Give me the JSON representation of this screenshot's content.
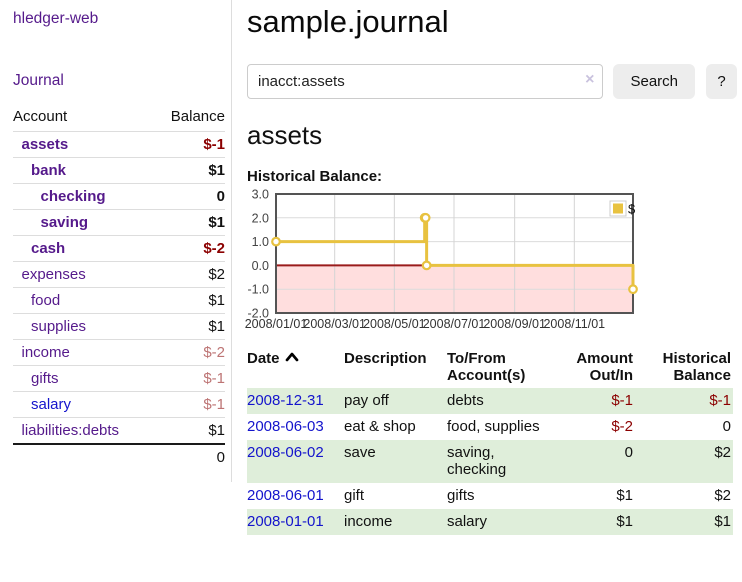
{
  "sidebar": {
    "brand": "hledger-web",
    "journal_link": "Journal",
    "accounts": {
      "headers": {
        "account": "Account",
        "balance": "Balance"
      },
      "rows": [
        {
          "name": "assets",
          "balance": "$-1",
          "indent": 1,
          "bold": true,
          "link_color": "purple",
          "balance_tone": "neg-strong"
        },
        {
          "name": "bank",
          "balance": "$1",
          "indent": 2,
          "bold": true,
          "link_color": "purple",
          "balance_tone": "pos"
        },
        {
          "name": "checking",
          "balance": "0",
          "indent": 3,
          "bold": true,
          "link_color": "purple",
          "balance_tone": "pos"
        },
        {
          "name": "saving",
          "balance": "$1",
          "indent": 3,
          "bold": true,
          "link_color": "purple",
          "balance_tone": "pos"
        },
        {
          "name": "cash",
          "balance": "$-2",
          "indent": 2,
          "bold": true,
          "link_color": "purple",
          "balance_tone": "neg-strong"
        },
        {
          "name": "expenses",
          "balance": "$2",
          "indent": 1,
          "bold": false,
          "link_color": "purple",
          "balance_tone": "pos"
        },
        {
          "name": "food",
          "balance": "$1",
          "indent": 2,
          "bold": false,
          "link_color": "purple",
          "balance_tone": "pos"
        },
        {
          "name": "supplies",
          "balance": "$1",
          "indent": 2,
          "bold": false,
          "link_color": "purple",
          "balance_tone": "pos"
        },
        {
          "name": "income",
          "balance": "$-2",
          "indent": 1,
          "bold": false,
          "link_color": "purple",
          "balance_tone": "neg-soft"
        },
        {
          "name": "gifts",
          "balance": "$-1",
          "indent": 2,
          "bold": false,
          "link_color": "purple",
          "balance_tone": "neg-soft"
        },
        {
          "name": "salary",
          "balance": "$-1",
          "indent": 2,
          "bold": false,
          "link_color": "blue",
          "balance_tone": "neg-soft"
        },
        {
          "name": "liabilities:debts",
          "balance": "$1",
          "indent": 1,
          "bold": false,
          "link_color": "purple",
          "balance_tone": "pos"
        }
      ],
      "total": "0"
    }
  },
  "main": {
    "title": "sample.journal",
    "search": {
      "value": "inacct:assets",
      "clear_icon": "×",
      "button_label": "Search",
      "help_label": "?"
    },
    "account_heading": "assets"
  },
  "chart_data": {
    "type": "line",
    "title": "Historical Balance:",
    "step": true,
    "grid": true,
    "x_min": "2008-01-01",
    "x_max": "2008-12-31",
    "ylim": [
      -2,
      3
    ],
    "y_ticks": [
      {
        "v": 3,
        "label": "3.0"
      },
      {
        "v": 2,
        "label": "2.0"
      },
      {
        "v": 1,
        "label": "1.0"
      },
      {
        "v": 0,
        "label": "0.0"
      },
      {
        "v": -1,
        "label": "-1.0"
      },
      {
        "v": -2,
        "label": "-2.0"
      }
    ],
    "x_ticks": [
      {
        "d": "2008-01-01",
        "label": "2008/01/01"
      },
      {
        "d": "2008-03-01",
        "label": "2008/03/01"
      },
      {
        "d": "2008-05-01",
        "label": "2008/05/01"
      },
      {
        "d": "2008-07-01",
        "label": "2008/07/01"
      },
      {
        "d": "2008-09-01",
        "label": "2008/09/01"
      },
      {
        "d": "2008-11-01",
        "label": "2008/11/01"
      }
    ],
    "series": [
      {
        "name": "$",
        "color": "#e8c240",
        "points": [
          {
            "d": "2008-01-01",
            "v": 1
          },
          {
            "d": "2008-06-01",
            "v": 2
          },
          {
            "d": "2008-06-02",
            "v": 2
          },
          {
            "d": "2008-06-03",
            "v": 0
          },
          {
            "d": "2008-12-31",
            "v": -1
          }
        ]
      }
    ],
    "legend": {
      "label": "$",
      "position": "top-right"
    },
    "negative_region_fill": "#ffdede",
    "zero_line_color": "#9a1b1b"
  },
  "register": {
    "headers": {
      "date": "Date",
      "description": "Description",
      "accounts": "To/From Account(s)",
      "amount": "Amount Out/In",
      "balance": "Historical Balance"
    },
    "sort": {
      "column": "date",
      "direction": "ascending"
    },
    "rows": [
      {
        "date": "2008-12-31",
        "description": "pay off",
        "accounts": "debts",
        "amount": "$-1",
        "amount_tone": "neg",
        "balance": "$-1",
        "balance_tone": "neg"
      },
      {
        "date": "2008-06-03",
        "description": "eat & shop",
        "accounts": "food, supplies",
        "amount": "$-2",
        "amount_tone": "neg",
        "balance": "0",
        "balance_tone": "pos"
      },
      {
        "date": "2008-06-02",
        "description": "save",
        "accounts": "saving, checking",
        "amount": "0",
        "amount_tone": "pos",
        "balance": "$2",
        "balance_tone": "pos"
      },
      {
        "date": "2008-06-01",
        "description": "gift",
        "accounts": "gifts",
        "amount": "$1",
        "amount_tone": "pos",
        "balance": "$2",
        "balance_tone": "pos"
      },
      {
        "date": "2008-01-01",
        "description": "income",
        "accounts": "salary",
        "amount": "$1",
        "amount_tone": "pos",
        "balance": "$1",
        "balance_tone": "pos"
      }
    ]
  },
  "colors": {
    "link_purple": "#551a8b",
    "link_blue": "#1414cc",
    "negative_strong": "#8b0000",
    "negative_soft": "#bd7474",
    "row_stripe_green": "#dfeeda",
    "chart_line_gold": "#e8c240",
    "chart_negative_fill": "#ffdede",
    "chart_zero_line": "#9a1b1b",
    "chart_border": "#545454"
  }
}
